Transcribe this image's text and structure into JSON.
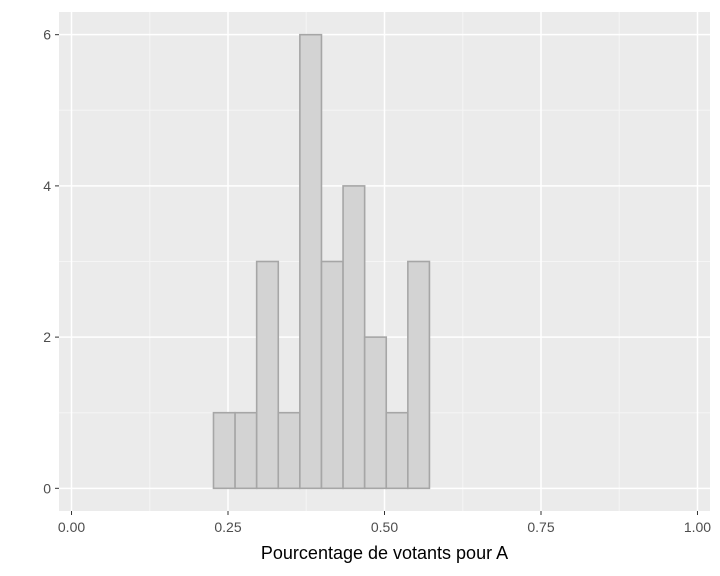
{
  "chart_data": {
    "type": "bar",
    "subtype": "histogram",
    "title": "",
    "xlabel": "Pourcentage de votants pour A",
    "ylabel": "",
    "xlim": [
      -0.02,
      1.02
    ],
    "ylim": [
      -0.3,
      6.3
    ],
    "x_ticks": [
      0.0,
      0.25,
      0.5,
      0.75,
      1.0
    ],
    "x_tick_labels": [
      "0.00",
      "0.25",
      "0.50",
      "0.75",
      "1.00"
    ],
    "y_ticks": [
      0,
      2,
      4,
      6
    ],
    "y_tick_labels": [
      "0",
      "2",
      "4",
      "6"
    ],
    "grid": true,
    "legend": "none",
    "bin_width": 0.0345,
    "bins_start": [
      0.0198,
      0.0543,
      0.0888,
      0.1233,
      0.1578,
      0.1923,
      0.2268,
      0.2613,
      0.2958,
      0.3303,
      0.3648,
      0.3993,
      0.4338,
      0.4683,
      0.5028,
      0.5373,
      0.5718,
      0.6063,
      0.6408,
      0.6753,
      0.7098,
      0.7443,
      0.7788,
      0.8133,
      0.8478,
      0.8823,
      0.9168,
      0.9513
    ],
    "counts": [
      0,
      0,
      0,
      0,
      0,
      0,
      1,
      1,
      3,
      1,
      6,
      3,
      4,
      2,
      1,
      3,
      0,
      0,
      0,
      0,
      0,
      0,
      0,
      0,
      0,
      0,
      0,
      0
    ],
    "colors": {
      "panel": "#ebebeb",
      "grid_major": "#ffffff",
      "grid_minor": "#f5f5f5",
      "bar_fill": "#d3d3d3",
      "bar_stroke": "#a6a6a6"
    }
  }
}
